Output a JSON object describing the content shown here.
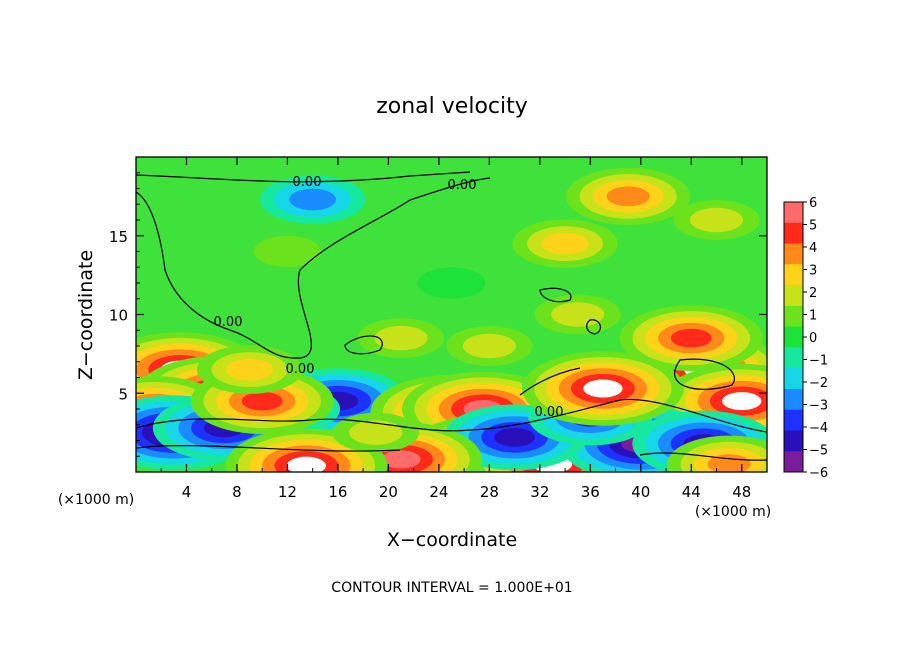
{
  "chart_data": {
    "type": "heatmap",
    "title": "zonal velocity",
    "xlabel": "X−coordinate",
    "ylabel": "Z−coordinate",
    "x_unit_left": "(×1000 m)",
    "x_unit_right": "(×1000 m)",
    "footer": "CONTOUR INTERVAL = 1.000E+01",
    "xlim": [
      0,
      50
    ],
    "ylim": [
      0,
      20
    ],
    "x_ticks": [
      4,
      8,
      12,
      16,
      20,
      24,
      28,
      32,
      36,
      40,
      44,
      48
    ],
    "y_ticks": [
      5,
      10,
      15
    ],
    "colorbar": {
      "min": -6,
      "max": 6,
      "ticks": [
        6,
        5,
        4,
        3,
        2,
        1,
        0,
        -1,
        -2,
        -3,
        -4,
        -5,
        -6
      ],
      "colors": [
        "#7a1c9c",
        "#2a10b8",
        "#1e32ff",
        "#1a8cff",
        "#17d6e8",
        "#16e8a0",
        "#1ce23a",
        "#6ce21c",
        "#c8e21a",
        "#ffd21a",
        "#ff8a1a",
        "#ff2a1a",
        "#ff6a6a"
      ]
    },
    "contour_labels": [
      "0.00",
      "0.00",
      "0.00",
      "0.00",
      "0.00"
    ],
    "blobs": [
      {
        "x": 25,
        "y": 12,
        "v": 0.2
      },
      {
        "x": 12,
        "y": 14,
        "v": 0.9
      },
      {
        "x": 14,
        "y": 17.3,
        "v": -2.5
      },
      {
        "x": 39,
        "y": 17.5,
        "v": 3.6
      },
      {
        "x": 34,
        "y": 14.5,
        "v": 3.0
      },
      {
        "x": 46,
        "y": 16,
        "v": 1.6
      },
      {
        "x": 28,
        "y": 8,
        "v": 2.2
      },
      {
        "x": 21,
        "y": 8.5,
        "v": 1.8
      },
      {
        "x": 3.5,
        "y": 6.5,
        "v": 6
      },
      {
        "x": 6.5,
        "y": 5,
        "v": 6
      },
      {
        "x": 1.5,
        "y": 4,
        "v": 4.5
      },
      {
        "x": 45,
        "y": 6.5,
        "v": 6
      },
      {
        "x": 44,
        "y": 8.5,
        "v": 4.5
      },
      {
        "x": 48,
        "y": 4.5,
        "v": 6
      },
      {
        "x": 14.5,
        "y": 3,
        "v": -6
      },
      {
        "x": 16,
        "y": 4.5,
        "v": -4.5
      },
      {
        "x": 12,
        "y": 4,
        "v": -3.2
      },
      {
        "x": 3,
        "y": 2.5,
        "v": -5.5
      },
      {
        "x": 7,
        "y": 2.8,
        "v": -4.5
      },
      {
        "x": 10,
        "y": 4.5,
        "v": 5
      },
      {
        "x": 25,
        "y": 3.8,
        "v": 6
      },
      {
        "x": 27.5,
        "y": 4,
        "v": 5.5
      },
      {
        "x": 28,
        "y": 1.3,
        "v": 6
      },
      {
        "x": 33,
        "y": 0.5,
        "v": 6
      },
      {
        "x": 40,
        "y": 1.8,
        "v": -5.5
      },
      {
        "x": 45,
        "y": 1.8,
        "v": -4.5
      },
      {
        "x": 30,
        "y": 2.2,
        "v": -4.5
      },
      {
        "x": 36,
        "y": 3.5,
        "v": -4
      },
      {
        "x": 34,
        "y": 5.5,
        "v": -2
      },
      {
        "x": 21,
        "y": 0.8,
        "v": 5.5
      },
      {
        "x": 13.5,
        "y": 0.4,
        "v": 6
      },
      {
        "x": 37,
        "y": 5.3,
        "v": 6
      },
      {
        "x": 47,
        "y": 0.5,
        "v": 3.5
      },
      {
        "x": 19,
        "y": 2.5,
        "v": 1.5
      },
      {
        "x": 9,
        "y": 6.5,
        "v": 3
      },
      {
        "x": 35,
        "y": 10,
        "v": 2
      }
    ]
  }
}
